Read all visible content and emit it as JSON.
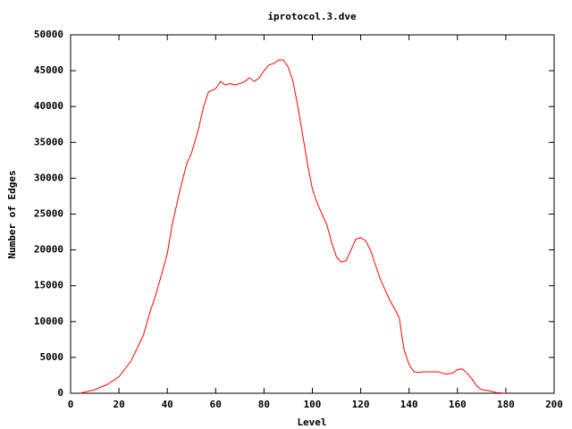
{
  "chart_data": {
    "type": "line",
    "title": "iprotocol.3.dve",
    "x_label": "Level",
    "y_label": "Number of Edges",
    "xlim": [
      0,
      200
    ],
    "xticks": [
      0,
      20,
      40,
      60,
      80,
      100,
      120,
      140,
      160,
      180,
      200
    ],
    "ylim": [
      0,
      50000
    ],
    "yticks": [
      0,
      5000,
      10000,
      15000,
      20000,
      25000,
      30000,
      35000,
      40000,
      45000,
      50000
    ],
    "grid": false,
    "series": [
      {
        "color": "#ff0000",
        "x": [
          4,
          5,
          10,
          15,
          20,
          25,
          30,
          33,
          35,
          38,
          40,
          42,
          45,
          48,
          50,
          53,
          55,
          57,
          60,
          62,
          64,
          66,
          68,
          70,
          72,
          74,
          76,
          78,
          80,
          82,
          84,
          86,
          88,
          90,
          92,
          94,
          96,
          98,
          100,
          102,
          104,
          106,
          108,
          110,
          112,
          114,
          116,
          118,
          120,
          122,
          124,
          126,
          128,
          130,
          132,
          134,
          136,
          137,
          138,
          140,
          142,
          144,
          146,
          150,
          152,
          155,
          158,
          160,
          162,
          164,
          166,
          168,
          170,
          174,
          176,
          178,
          180
        ],
        "values": [
          0,
          100,
          500,
          1200,
          2300,
          4500,
          8000,
          11500,
          13500,
          17000,
          19500,
          23500,
          28000,
          32000,
          33500,
          37000,
          40000,
          42000,
          42500,
          43500,
          43000,
          43200,
          43000,
          43200,
          43500,
          44000,
          43500,
          44000,
          45000,
          45800,
          46000,
          46500,
          46500,
          45500,
          43500,
          40000,
          36000,
          32000,
          28500,
          26500,
          25000,
          23500,
          21000,
          19000,
          18300,
          18500,
          20000,
          21500,
          21700,
          21300,
          20000,
          18000,
          16000,
          14500,
          13000,
          11800,
          10500,
          8000,
          6000,
          4000,
          3000,
          2900,
          3000,
          3000,
          3000,
          2700,
          2800,
          3300,
          3400,
          2800,
          2000,
          1000,
          500,
          300,
          100,
          50,
          0
        ]
      }
    ]
  }
}
